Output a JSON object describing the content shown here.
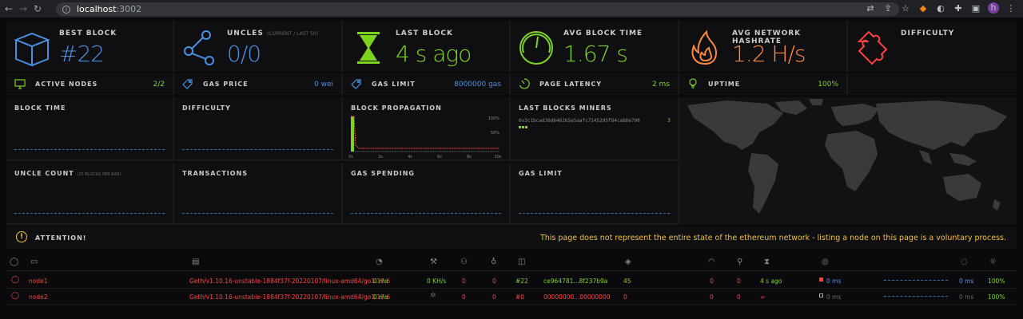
{
  "browser": {
    "url_host": "localhost",
    "url_port": ":3002",
    "avatar": "h"
  },
  "stats": {
    "best_block": {
      "label": "BEST BLOCK",
      "value": "#22"
    },
    "uncles": {
      "label": "UNCLES",
      "sub": "(CURRENT / LAST 50)",
      "value": "0/0"
    },
    "last_block": {
      "label": "LAST BLOCK",
      "value": "4 s ago"
    },
    "avg_block_time": {
      "label": "AVG BLOCK TIME",
      "value": "1.67 s"
    },
    "avg_hashrate": {
      "label": "AVG NETWORK HASHRATE",
      "value": "1.2 H/s"
    },
    "difficulty": {
      "label": "DIFFICULTY",
      "value": ""
    }
  },
  "small_stats": {
    "active_nodes": {
      "label": "ACTIVE NODES",
      "value": "2/2"
    },
    "gas_price": {
      "label": "GAS PRICE",
      "value": "0 wei"
    },
    "gas_limit": {
      "label": "GAS LIMIT",
      "value": "8000000 gas"
    },
    "page_latency": {
      "label": "PAGE LATENCY",
      "value": "2 ms"
    },
    "uptime": {
      "label": "UPTIME",
      "value": "100%"
    }
  },
  "charts": {
    "block_time": "BLOCK TIME",
    "difficulty": "DIFFICULTY",
    "block_propagation": "BLOCK PROPAGATION",
    "last_blocks_miners": "LAST BLOCKS MINERS",
    "uncle_count": "UNCLE COUNT",
    "uncle_count_sub": "(25 BLOCKS PER BAR)",
    "transactions": "TRANSACTIONS",
    "gas_spending": "GAS SPENDING",
    "gas_limit": "GAS LIMIT"
  },
  "propagation": {
    "y_ticks": [
      "100%",
      "50%"
    ],
    "x_ticks": [
      "0s",
      "2s",
      "4s",
      "6s",
      "8s",
      "10s"
    ]
  },
  "miner": {
    "address": "0x3c1bcad30d646265e5aafc7145295f84ca88e700",
    "count": "3"
  },
  "attention": {
    "label": "ATTENTION!",
    "message": "This page does not represent the entire state of the ethereum network - listing a node on this page is a voluntary process."
  },
  "nodes": [
    {
      "name": "node1",
      "client": "Geth/v1.10.16-unstable-1884f37f-20220107/linux-amd64/go1.17.6",
      "latency": "0 ms",
      "hashrate": "0 KH/s",
      "peers": "0",
      "pending": "0",
      "block": "#22",
      "hash": "ce964781...8f237b9a",
      "diff": "45",
      "uncles": "0",
      "txs": "0",
      "last": "4 s ago",
      "prop": "0 ms",
      "avgprop": "0 ms",
      "uptime": "100%"
    },
    {
      "name": "node2",
      "client": "Geth/v1.10.16-unstable-1884f37f-20220107/linux-amd64/go1.17.6",
      "latency": "0 ms",
      "hashrate": "",
      "peers": "0",
      "pending": "0",
      "block": "#0",
      "hash": "00000000...00000000",
      "diff": "0",
      "uncles": "0",
      "txs": "0",
      "last": "∞",
      "prop": "0 ms",
      "avgprop": "0 ms",
      "uptime": "100%"
    }
  ],
  "colors": {
    "blue": "#4a90e2",
    "green": "#7ed321",
    "orange": "#ff8a3d",
    "red": "#ff4040",
    "yellow": "#f0c040"
  }
}
